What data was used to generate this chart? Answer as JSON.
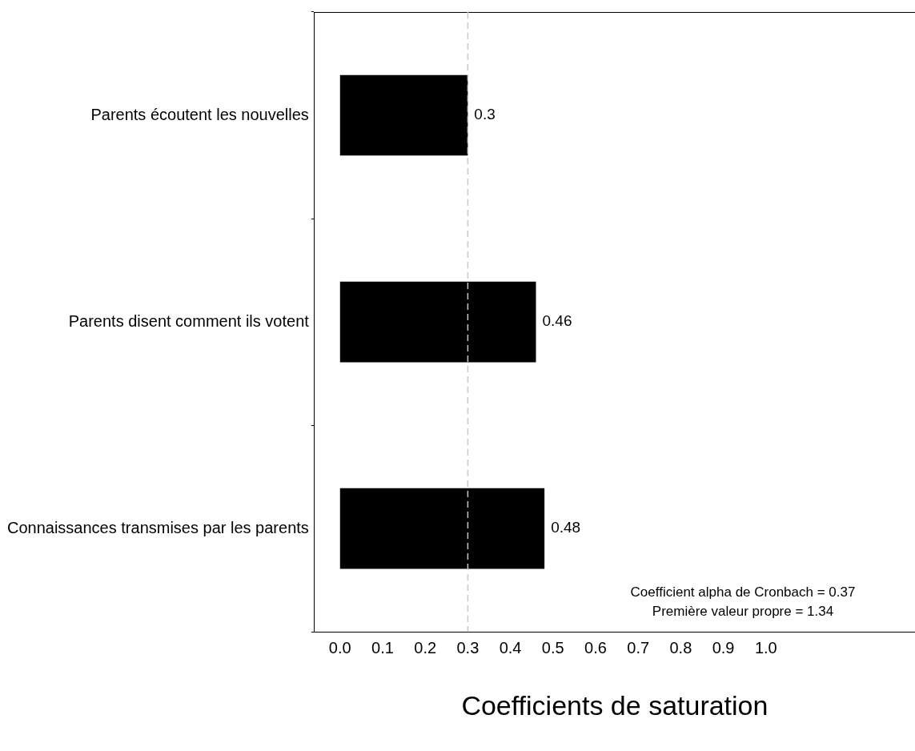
{
  "chart_data": {
    "type": "bar",
    "orientation": "horizontal",
    "xlabel": "Coefficients de saturation",
    "categories": [
      "Parents écoutent les nouvelles",
      "Parents disent comment ils votent",
      "Connaissances transmises par les parents"
    ],
    "values": [
      0.3,
      0.46,
      0.48
    ],
    "color": "#000000",
    "data_labels": true,
    "xlim": [
      -0.06,
      1.35
    ],
    "xticks": [
      {
        "value": 0,
        "label": "0.0"
      },
      {
        "value": 0.1,
        "label": "0.1"
      },
      {
        "value": 0.2,
        "label": "0.2"
      },
      {
        "value": 0.3,
        "label": "0.3"
      },
      {
        "value": 0.4,
        "label": "0.4"
      },
      {
        "value": 0.5,
        "label": "0.5"
      },
      {
        "value": 0.6,
        "label": "0.6"
      },
      {
        "value": 0.7,
        "label": "0.7"
      },
      {
        "value": 0.8,
        "label": "0.8"
      },
      {
        "value": 0.9,
        "label": "0.9"
      },
      {
        "value": 1,
        "label": "1.0"
      }
    ],
    "ref_lines": [
      {
        "axis": "x",
        "value": 0.3,
        "color": "#c8c8c8",
        "line_style": "dashed"
      }
    ],
    "annotations": [
      "Coefficient alpha de Cronbach = 0.37",
      "Première valeur propre = 1.34"
    ],
    "grid": false,
    "legend": false
  }
}
